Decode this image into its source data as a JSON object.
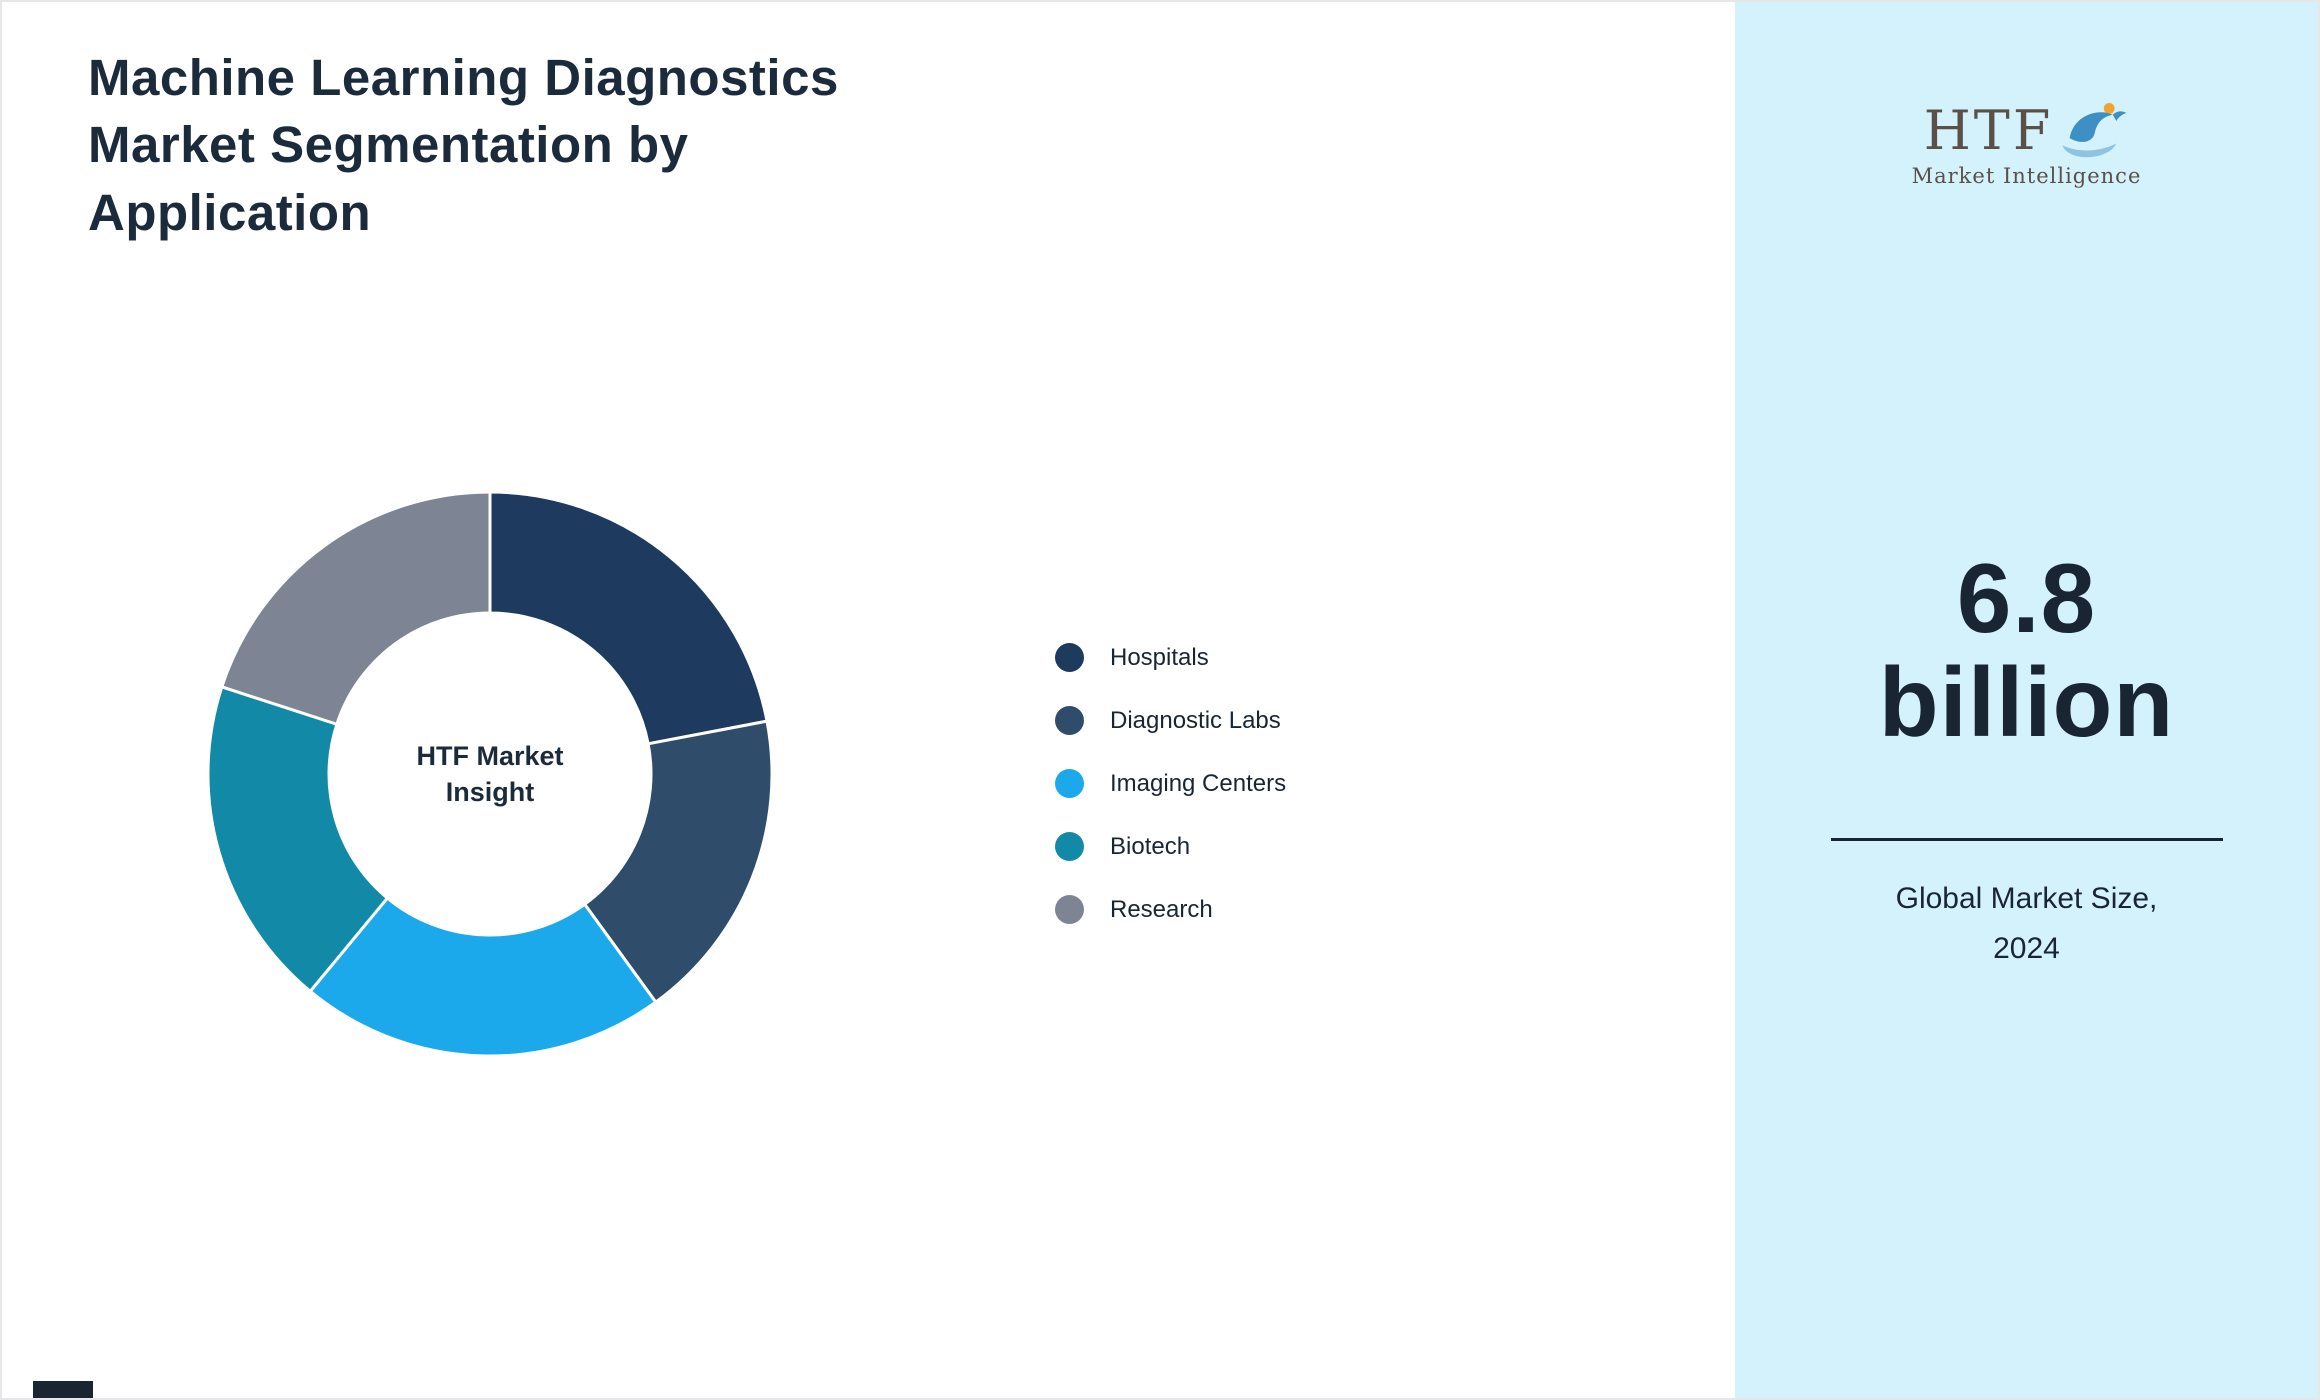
{
  "page": {
    "title": "Machine Learning Diagnostics Market Segmentation by Application"
  },
  "chart_data": {
    "type": "pie",
    "subtype": "donut",
    "title": "Machine Learning Diagnostics Market Segmentation by Application",
    "categories": [
      "Hospitals",
      "Diagnostic Labs",
      "Imaging Centers",
      "Biotech",
      "Research"
    ],
    "values": [
      22,
      18,
      21,
      19,
      20
    ],
    "colors": [
      "#1e3a5f",
      "#2f4d6b",
      "#1ca9ec",
      "#1389a8",
      "#7d8594"
    ],
    "center_label": "HTF Market Insight",
    "legend_position": "right",
    "start_angle_deg": 0,
    "direction": "clockwise"
  },
  "sidebar": {
    "panel_color": "#d4f2fb",
    "logo_brand": "HTF",
    "logo_tagline": "Market Intelligence",
    "market_size_value": "6.8 billion",
    "market_size_caption": "Global Market Size, 2024"
  },
  "colors": {
    "heading_text": "#1c2b3c",
    "accent_bar": "#1a2533"
  }
}
